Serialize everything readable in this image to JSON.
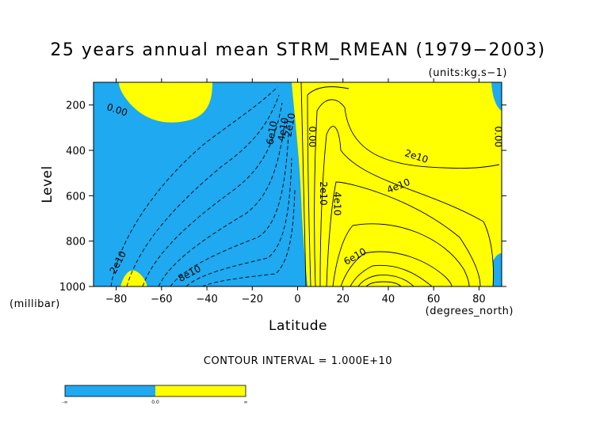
{
  "chart_data": {
    "type": "heatmap",
    "title": "25 years annual mean STRM_RMEAN (1979−2003)",
    "subtitle": "(units:kg.s−1)",
    "xlabel": "Latitude",
    "ylabel": "Level",
    "x_units": "(degrees_north)",
    "y_units": "(millibar)",
    "xlim": [
      -90,
      90
    ],
    "ylim": [
      1000,
      100
    ],
    "x_ticks": [
      -80,
      -60,
      -40,
      -20,
      0,
      20,
      40,
      60,
      80
    ],
    "y_ticks": [
      200,
      400,
      600,
      800,
      1000
    ],
    "contour_interval_text": "CONTOUR INTERVAL = 1.000E+10",
    "contour_interval": 10000000000.0,
    "fill_colors": {
      "negative": "#1ea9f0",
      "positive": "#ffff00"
    },
    "contour_labels": [
      {
        "text": "0.00",
        "x": -80,
        "y": 235,
        "angle": 18
      },
      {
        "text": "6e10",
        "x": -10,
        "y": 325,
        "angle": -80
      },
      {
        "text": "4e10",
        "x": -5,
        "y": 310,
        "angle": -80
      },
      {
        "text": "2e10",
        "x": -2,
        "y": 290,
        "angle": -80
      },
      {
        "text": "0.00",
        "x": 5,
        "y": 340,
        "angle": 90
      },
      {
        "text": "2e10",
        "x": 10,
        "y": 590,
        "angle": 90
      },
      {
        "text": "4e10",
        "x": 16,
        "y": 635,
        "angle": 90
      },
      {
        "text": "2e10",
        "x": 52,
        "y": 440,
        "angle": 18
      },
      {
        "text": "4e10",
        "x": 45,
        "y": 570,
        "angle": -22
      },
      {
        "text": "6e10",
        "x": 26,
        "y": 880,
        "angle": -30
      },
      {
        "text": "0.00",
        "x": 87,
        "y": 340,
        "angle": 90
      },
      {
        "text": "2e10",
        "x": -78,
        "y": 900,
        "angle": -62
      },
      {
        "text": "8e10",
        "x": -47,
        "y": 955,
        "angle": -28
      }
    ],
    "colorbar": {
      "labels": [
        "-∞",
        "0.0",
        "∞"
      ],
      "colors": [
        "#1ea9f0",
        "#ffff00"
      ]
    }
  }
}
